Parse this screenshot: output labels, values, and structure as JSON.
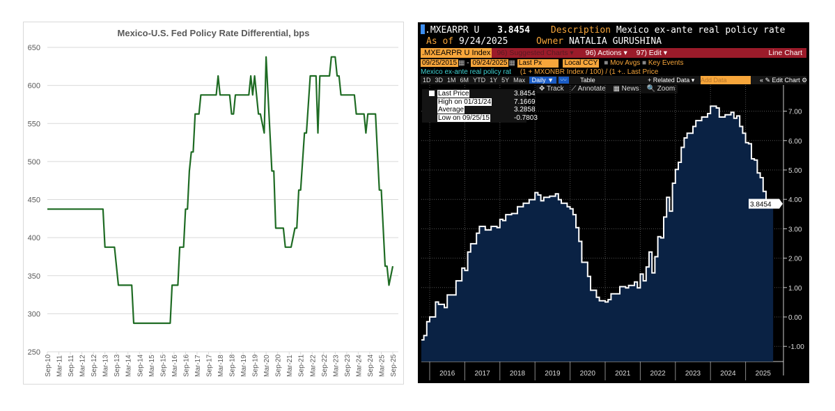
{
  "left_chart": {
    "chart_data": {
      "type": "line",
      "title": "Mexico-U.S. Fed Policy Rate Differential, bps",
      "ylim": [
        250,
        650
      ],
      "yticks": [
        250,
        300,
        350,
        400,
        450,
        500,
        550,
        600,
        650
      ],
      "xticks": [
        "Sep-10",
        "Mar-11",
        "Sep-11",
        "Mar-12",
        "Sep-12",
        "Mar-13",
        "Sep-13",
        "Mar-14",
        "Sep-14",
        "Mar-15",
        "Sep-15",
        "Mar-16",
        "Sep-16",
        "Mar-17",
        "Sep-17",
        "Mar-18",
        "Sep-18",
        "Mar-19",
        "Sep-19",
        "Mar-20",
        "Sep-20",
        "Mar-21",
        "Sep-21",
        "Mar-22",
        "Sep-22",
        "Mar-23",
        "Sep-23",
        "Mar-24",
        "Sep-24",
        "Mar-25",
        "Sep-25"
      ],
      "grid": true,
      "line_color": "#1e6b23",
      "points": [
        [
          "2010-09",
          437.5
        ],
        [
          "2013-02",
          437.5
        ],
        [
          "2013-03",
          387.5
        ],
        [
          "2013-08",
          387.5
        ],
        [
          "2013-10",
          337.5
        ],
        [
          "2014-05",
          337.5
        ],
        [
          "2014-06",
          287.5
        ],
        [
          "2016-01",
          287.5
        ],
        [
          "2016-02",
          337.5
        ],
        [
          "2016-05",
          337.5
        ],
        [
          "2016-06",
          387.5
        ],
        [
          "2016-08",
          387.5
        ],
        [
          "2016-09",
          437.5
        ],
        [
          "2016-10",
          437.5
        ],
        [
          "2016-11",
          487.5
        ],
        [
          "2016-12",
          512.5
        ],
        [
          "2017-01",
          512.5
        ],
        [
          "2017-02",
          562.5
        ],
        [
          "2017-04",
          562.5
        ],
        [
          "2017-05",
          587.5
        ],
        [
          "2018-01",
          587.5
        ],
        [
          "2018-02",
          612.5
        ],
        [
          "2018-03",
          587.5
        ],
        [
          "2018-08",
          587.5
        ],
        [
          "2018-09",
          562.5
        ],
        [
          "2018-10",
          562.5
        ],
        [
          "2018-11",
          587.5
        ],
        [
          "2019-06",
          587.5
        ],
        [
          "2019-07",
          612.5
        ],
        [
          "2019-08",
          587.5
        ],
        [
          "2019-09",
          612.5
        ],
        [
          "2019-11",
          562.5
        ],
        [
          "2019-12",
          562.5
        ],
        [
          "2020-02",
          537.5
        ],
        [
          "2020-03",
          637.5
        ],
        [
          "2020-06",
          487.5
        ],
        [
          "2020-07",
          487.5
        ],
        [
          "2020-08",
          412.5
        ],
        [
          "2020-12",
          412.5
        ],
        [
          "2021-01",
          387.5
        ],
        [
          "2021-04",
          387.5
        ],
        [
          "2021-06",
          412.5
        ],
        [
          "2021-07",
          412.5
        ],
        [
          "2021-08",
          462.5
        ],
        [
          "2021-09",
          462.5
        ],
        [
          "2021-11",
          537.5
        ],
        [
          "2021-12",
          537.5
        ],
        [
          "2022-02",
          612.5
        ],
        [
          "2022-05",
          612.5
        ],
        [
          "2022-06",
          537.5
        ],
        [
          "2022-07",
          612.5
        ],
        [
          "2022-12",
          612.5
        ],
        [
          "2023-01",
          637.5
        ],
        [
          "2023-03",
          637.5
        ],
        [
          "2023-04",
          612.5
        ],
        [
          "2023-05",
          612.5
        ],
        [
          "2023-06",
          587.5
        ],
        [
          "2024-01",
          587.5
        ],
        [
          "2024-02",
          562.5
        ],
        [
          "2024-06",
          562.5
        ],
        [
          "2024-07",
          537.5
        ],
        [
          "2024-08",
          562.5
        ],
        [
          "2024-12",
          562.5
        ],
        [
          "2025-02",
          462.5
        ],
        [
          "2025-03",
          462.5
        ],
        [
          "2025-05",
          362.5
        ],
        [
          "2025-06",
          362.5
        ],
        [
          "2025-07",
          337.5
        ],
        [
          "2025-09",
          362.5
        ]
      ]
    }
  },
  "terminal": {
    "ticker": ".MXEARPR U",
    "last_value": "3.8454",
    "description_label": "Description",
    "description": "Mexico ex-ante real policy rate",
    "as_of_label": "As of",
    "as_of": "9/24/2025",
    "owner_label": "Owner",
    "owner": "NATALIA GURUSHINA",
    "security": ".MXEARPR U Index",
    "suggested_charts": "96) Suggested Charts ▾",
    "actions": "96) Actions ▾",
    "edit": "97) Edit ▾",
    "chart_kind": "Line Chart",
    "start_date": "09/25/2015",
    "end_date": "09/24/2025",
    "field": "Last Px",
    "currency": "Local CCY",
    "mov_avgs": "Mov Avgs",
    "key_events": "Key Events",
    "series_name": "Mexico ex-ante real policy rat",
    "formula": "(1 + MXONBR Index / 100) / (1 +.. Last Price",
    "periods": [
      "1D",
      "3D",
      "1M",
      "6M",
      "YTD",
      "1Y",
      "5Y",
      "Max"
    ],
    "frequency": "Daily ▼",
    "table": "Table",
    "related_data": "+ Related Data ▾",
    "add_data_placeholder": "Add Data",
    "edit_chart": "« ✎ Edit Chart ⚙",
    "tools": [
      "✥ Track",
      "⟋ Annotate",
      "▦ News",
      "🔍 Zoom"
    ],
    "legend": [
      {
        "label": "Last Price",
        "value": "3.8454"
      },
      {
        "label": "High on 01/31/24",
        "value": "7.1669"
      },
      {
        "label": "Average",
        "value": "3.2858"
      },
      {
        "label": "Low on 09/25/15",
        "value": "-0.7803"
      }
    ],
    "colors": {
      "accent": "#f7a63b",
      "menu_bar": "#9b1b2a",
      "fill": "#0a2244",
      "background": "#000000"
    },
    "chart_data": {
      "type": "area",
      "step": true,
      "ylim": [
        -1.5,
        7.5
      ],
      "yticks": [
        "-1.00",
        "0.00",
        "1.00",
        "2.00",
        "3.00",
        "4.00",
        "5.00",
        "6.00",
        "7.00"
      ],
      "xticks": [
        "2016",
        "2017",
        "2018",
        "2019",
        "2020",
        "2021",
        "2022",
        "2023",
        "2024",
        "2025"
      ],
      "last_label": "3.8454",
      "grid": true,
      "points": [
        [
          "2015-09",
          -0.78
        ],
        [
          "2015-11",
          -0.63
        ],
        [
          "2015-12",
          -0.16
        ],
        [
          "2016-01",
          0.0
        ],
        [
          "2016-03",
          0.51
        ],
        [
          "2016-04",
          0.43
        ],
        [
          "2016-06",
          0.32
        ],
        [
          "2016-07",
          0.75
        ],
        [
          "2016-10",
          1.23
        ],
        [
          "2016-12",
          1.66
        ],
        [
          "2017-01",
          1.58
        ],
        [
          "2017-02",
          2.21
        ],
        [
          "2017-03",
          2.49
        ],
        [
          "2017-05",
          2.85
        ],
        [
          "2017-06",
          3.08
        ],
        [
          "2017-08",
          2.96
        ],
        [
          "2017-10",
          3.08
        ],
        [
          "2017-12",
          3.04
        ],
        [
          "2018-01",
          3.32
        ],
        [
          "2018-02",
          3.28
        ],
        [
          "2018-03",
          3.48
        ],
        [
          "2018-05",
          3.52
        ],
        [
          "2018-07",
          3.75
        ],
        [
          "2018-09",
          3.87
        ],
        [
          "2018-11",
          3.99
        ],
        [
          "2019-01",
          4.23
        ],
        [
          "2019-02",
          4.15
        ],
        [
          "2019-03",
          3.95
        ],
        [
          "2019-04",
          4.07
        ],
        [
          "2019-06",
          4.11
        ],
        [
          "2019-08",
          4.19
        ],
        [
          "2019-09",
          3.99
        ],
        [
          "2019-10",
          3.87
        ],
        [
          "2019-12",
          3.75
        ],
        [
          "2020-01",
          3.68
        ],
        [
          "2020-02",
          3.48
        ],
        [
          "2020-03",
          3.04
        ],
        [
          "2020-04",
          2.57
        ],
        [
          "2020-05",
          1.86
        ],
        [
          "2020-07",
          1.38
        ],
        [
          "2020-08",
          0.91
        ],
        [
          "2020-10",
          0.67
        ],
        [
          "2020-11",
          0.55
        ],
        [
          "2021-01",
          0.51
        ],
        [
          "2021-02",
          0.59
        ],
        [
          "2021-03",
          0.79
        ],
        [
          "2021-06",
          1.03
        ],
        [
          "2021-08",
          0.99
        ],
        [
          "2021-09",
          1.07
        ],
        [
          "2021-11",
          1.19
        ],
        [
          "2021-12",
          0.99
        ],
        [
          "2022-01",
          1.46
        ],
        [
          "2022-02",
          1.23
        ],
        [
          "2022-03",
          1.7
        ],
        [
          "2022-04",
          2.21
        ],
        [
          "2022-05",
          1.5
        ],
        [
          "2022-06",
          2.05
        ],
        [
          "2022-07",
          2.73
        ],
        [
          "2022-08",
          2.69
        ],
        [
          "2022-09",
          3.4
        ],
        [
          "2022-10",
          4.07
        ],
        [
          "2022-11",
          3.6
        ],
        [
          "2022-12",
          4.55
        ],
        [
          "2023-01",
          5.02
        ],
        [
          "2023-02",
          5.26
        ],
        [
          "2023-03",
          5.77
        ],
        [
          "2023-04",
          6.09
        ],
        [
          "2023-05",
          6.25
        ],
        [
          "2023-07",
          6.48
        ],
        [
          "2023-08",
          6.68
        ],
        [
          "2023-10",
          6.8
        ],
        [
          "2023-12",
          6.92
        ],
        [
          "2024-01",
          7.17
        ],
        [
          "2024-03",
          7.11
        ],
        [
          "2024-04",
          6.8
        ],
        [
          "2024-06",
          6.88
        ],
        [
          "2024-08",
          6.96
        ],
        [
          "2024-09",
          6.76
        ],
        [
          "2024-10",
          6.84
        ],
        [
          "2024-11",
          6.48
        ],
        [
          "2024-12",
          6.25
        ],
        [
          "2025-01",
          5.93
        ],
        [
          "2025-02",
          5.89
        ],
        [
          "2025-03",
          5.38
        ],
        [
          "2025-04",
          5.34
        ],
        [
          "2025-05",
          4.9
        ],
        [
          "2025-06",
          4.74
        ],
        [
          "2025-07",
          4.27
        ],
        [
          "2025-08",
          3.95
        ],
        [
          "2025-09",
          3.85
        ]
      ]
    }
  }
}
